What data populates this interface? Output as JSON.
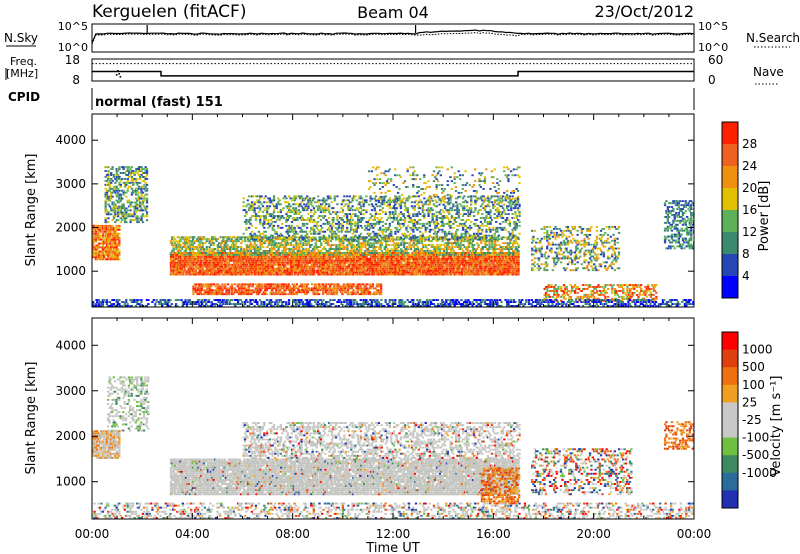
{
  "header": {
    "station": "Kerguelen (fitACF)",
    "beam": "Beam 04",
    "date": "23/Oct/2012"
  },
  "labels": {
    "nsky": "N.Sky",
    "nsearch": "N.Search",
    "freq_line1": "Freq.",
    "freq_line2": "[MHz]",
    "nave": "Nave",
    "cpid": "CPID",
    "cpid_value": "normal (fast) 151",
    "ylabel_power": "Slant Range [km]",
    "ylabel_velocity": "Slant Range [km]",
    "xlabel": "Time UT",
    "power_bar_label": "Power [dB]",
    "velocity_bar_label": "Velocity [m s⁻¹]"
  },
  "colors": {
    "power_scale": [
      "#0000ff",
      "#2546b4",
      "#3c8a6e",
      "#5cb15a",
      "#e0c000",
      "#f09010",
      "#f06020",
      "#ff2000"
    ],
    "velocity_scale": [
      "#2030b0",
      "#2c6c9c",
      "#3e8a60",
      "#70c040",
      "#c8c8c8",
      "#c8c8c8",
      "#f0a020",
      "#f07010",
      "#e04010",
      "#ff0000"
    ],
    "gray_echo": "#c4c4c0"
  },
  "chart_data": [
    {
      "type": "line",
      "panel": "sky-noise",
      "left_ticks": [
        "10^5",
        "10^0"
      ],
      "right_ticks": [
        "10^5",
        "10^0"
      ],
      "series": [
        {
          "name": "N.Sky",
          "style": "solid"
        },
        {
          "name": "N.Search",
          "style": "dotted"
        }
      ]
    },
    {
      "type": "line",
      "panel": "frequency-nave",
      "left_ticks": [
        18,
        8
      ],
      "right_ticks": [
        60,
        0
      ],
      "x": [
        "00:00",
        "02:45",
        "02:45",
        "16:59",
        "16:59",
        "24:00"
      ],
      "series": [
        {
          "name": "Freq.",
          "values": [
            12.3,
            12.3,
            10.3,
            10.3,
            12.3,
            12.3
          ]
        },
        {
          "name": "Nave",
          "values": [
            42,
            42,
            42,
            42,
            42,
            42
          ]
        }
      ]
    },
    {
      "type": "heatmap",
      "panel": "power",
      "ylabel": "Slant Range [km]",
      "ylim": [
        180,
        4600
      ],
      "yticks": [
        1000,
        2000,
        3000,
        4000
      ],
      "xlim": [
        "00:00",
        "24:00"
      ],
      "colorbar": {
        "label": "Power [dB]",
        "ticks": [
          4,
          8,
          12,
          16,
          20,
          24,
          28
        ]
      }
    },
    {
      "type": "heatmap",
      "panel": "velocity",
      "ylabel": "Slant Range [km]",
      "ylim": [
        180,
        4600
      ],
      "yticks": [
        1000,
        2000,
        3000,
        4000
      ],
      "xlabel": "Time UT",
      "xticks": [
        "00:00",
        "04:00",
        "08:00",
        "12:00",
        "16:00",
        "20:00",
        "00:00"
      ],
      "colorbar": {
        "label": "Velocity [m s⁻¹]",
        "ticks": [
          1000,
          500,
          100,
          25,
          -25,
          -100,
          -500,
          -1000
        ]
      }
    }
  ]
}
